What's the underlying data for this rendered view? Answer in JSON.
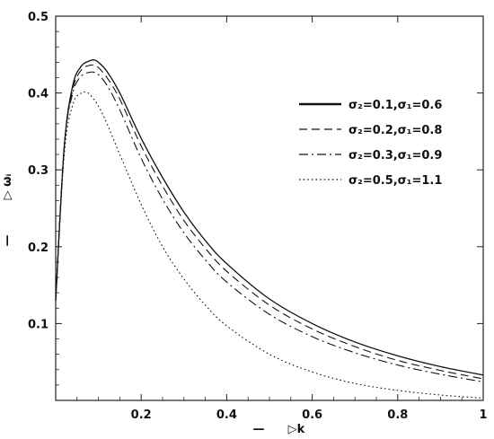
{
  "chart_data": {
    "type": "line",
    "xlim": [
      0,
      1
    ],
    "ylim": [
      0,
      0.5
    ],
    "grid": false,
    "legend_position": "right",
    "xlabel": "▷k",
    "ylabel": "▷ ωᵢ",
    "xlabel_prefix": "—",
    "ylabel_prefix": "—",
    "x_ticks": [
      {
        "value": 0.2,
        "label": "0.2"
      },
      {
        "value": 0.4,
        "label": "0.4"
      },
      {
        "value": 0.6,
        "label": "0.6"
      },
      {
        "value": 0.8,
        "label": "0.8"
      },
      {
        "value": 1.0,
        "label": "1"
      }
    ],
    "y_ticks": [
      {
        "value": 0.1,
        "label": "0.1"
      },
      {
        "value": 0.2,
        "label": "0.2"
      },
      {
        "value": 0.3,
        "label": "0.3"
      },
      {
        "value": 0.4,
        "label": "0.4"
      },
      {
        "value": 0.5,
        "label": "0.5"
      }
    ],
    "series": [
      {
        "legend_label": "σ₂=0.1,σ₁=0.6",
        "style": "solid",
        "x": [
          0.0,
          0.02,
          0.04,
          0.06,
          0.08,
          0.09,
          0.1,
          0.12,
          0.15,
          0.2,
          0.25,
          0.3,
          0.35,
          0.4,
          0.5,
          0.6,
          0.7,
          0.8,
          0.9,
          1.0
        ],
        "y": [
          0.13,
          0.33,
          0.41,
          0.435,
          0.442,
          0.443,
          0.44,
          0.428,
          0.4,
          0.341,
          0.29,
          0.245,
          0.208,
          0.178,
          0.132,
          0.1,
          0.076,
          0.058,
          0.044,
          0.033
        ]
      },
      {
        "legend_label": "σ₂=0.2,σ₁=0.8",
        "style": "dashed",
        "x": [
          0.0,
          0.02,
          0.04,
          0.06,
          0.08,
          0.09,
          0.1,
          0.12,
          0.15,
          0.2,
          0.25,
          0.3,
          0.35,
          0.4,
          0.5,
          0.6,
          0.7,
          0.8,
          0.9,
          1.0
        ],
        "y": [
          0.13,
          0.33,
          0.405,
          0.43,
          0.436,
          0.436,
          0.433,
          0.42,
          0.392,
          0.331,
          0.279,
          0.234,
          0.198,
          0.168,
          0.124,
          0.093,
          0.07,
          0.052,
          0.039,
          0.028
        ]
      },
      {
        "legend_label": "σ₂=0.3,σ₁=0.9",
        "style": "dashdot",
        "x": [
          0.0,
          0.02,
          0.04,
          0.06,
          0.08,
          0.09,
          0.1,
          0.12,
          0.15,
          0.2,
          0.25,
          0.3,
          0.35,
          0.4,
          0.5,
          0.6,
          0.7,
          0.8,
          0.9,
          1.0
        ],
        "y": [
          0.13,
          0.33,
          0.4,
          0.422,
          0.427,
          0.427,
          0.424,
          0.41,
          0.378,
          0.315,
          0.262,
          0.218,
          0.183,
          0.154,
          0.112,
          0.083,
          0.062,
          0.046,
          0.034,
          0.024
        ]
      },
      {
        "legend_label": "σ₂=0.5,σ₁=1.1",
        "style": "dotted",
        "x": [
          0.0,
          0.02,
          0.04,
          0.06,
          0.07,
          0.08,
          0.1,
          0.12,
          0.15,
          0.2,
          0.25,
          0.3,
          0.35,
          0.4,
          0.5,
          0.6,
          0.7,
          0.8,
          0.9,
          1.0
        ],
        "y": [
          0.13,
          0.32,
          0.385,
          0.4,
          0.401,
          0.398,
          0.383,
          0.36,
          0.32,
          0.255,
          0.2,
          0.158,
          0.124,
          0.097,
          0.06,
          0.037,
          0.022,
          0.013,
          0.007,
          0.003
        ]
      }
    ]
  }
}
